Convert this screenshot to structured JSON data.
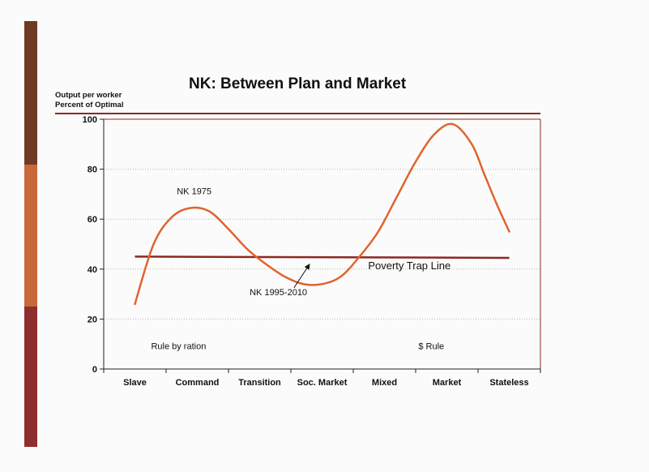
{
  "colors": {
    "sidebar_top": "#6f3a24",
    "sidebar_mid": "#c9683a",
    "sidebar_bottom": "#8e2e2e",
    "curve": "#e0642e",
    "poverty_line": "#8b2a22",
    "rule": "#8b2a22",
    "grid": "#b8b8b8"
  },
  "title": "NK:  Between Plan and Market",
  "ylabel_lines": [
    "Output per worker",
    "Percent of Optimal"
  ],
  "chart_data": {
    "type": "line",
    "categories": [
      "Slave",
      "Command",
      "Transition",
      "Soc. Market",
      "Mixed",
      "Market",
      "Stateless"
    ],
    "ylim": [
      0,
      100
    ],
    "yticks": [
      0,
      20,
      40,
      60,
      80,
      100
    ],
    "grid": true,
    "series": [
      {
        "x": [
          0,
          0.3,
          0.6,
          0.9,
          1.2,
          1.5,
          1.8,
          2.1,
          2.4,
          2.7,
          3.0,
          3.3,
          3.6,
          3.9,
          4.2,
          4.5,
          4.8,
          5.1,
          5.4,
          5.6,
          5.8,
          6.0
        ],
        "y": [
          26,
          50,
          61,
          64.5,
          63,
          56,
          48,
          42,
          37,
          34,
          34,
          37,
          45,
          55,
          69,
          83,
          94,
          98,
          90,
          78,
          66,
          55
        ]
      },
      {
        "x": [
          0,
          6.0
        ],
        "y": [
          45,
          44.5
        ]
      }
    ],
    "annotations": [
      {
        "text": "NK 1975",
        "x": 0.95,
        "y": 70
      },
      {
        "text": "NK 1995-2010",
        "x": 2.3,
        "y": 29.5
      },
      {
        "text": "Poverty Trap Line",
        "x": 4.4,
        "y": 40
      },
      {
        "text": "Rule by ration",
        "x": 0.7,
        "y": 8
      },
      {
        "text": "$ Rule",
        "x": 4.75,
        "y": 8
      }
    ],
    "arrow": {
      "from": [
        2.55,
        32.5
      ],
      "to": [
        2.8,
        42
      ]
    }
  }
}
